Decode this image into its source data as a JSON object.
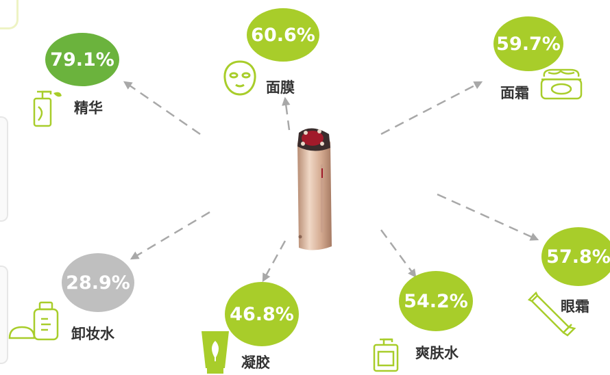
{
  "colors": {
    "darkGreen": "#6bb33d",
    "limeGreen": "#a8cd2a",
    "gray": "#bfbfbf",
    "iconGreen": "#a8cd2a",
    "arrow": "#a8a8a8",
    "text": "#333333"
  },
  "center_device": {
    "icon": "beauty-device"
  },
  "items": [
    {
      "id": "essence",
      "label": "精华",
      "value": "79.1%",
      "color": "dark-green",
      "icon": "pump-bottle-icon"
    },
    {
      "id": "mask",
      "label": "面膜",
      "value": "60.6%",
      "color": "lime-green",
      "icon": "face-mask-icon"
    },
    {
      "id": "cream",
      "label": "面霜",
      "value": "59.7%",
      "color": "lime-green",
      "icon": "cream-jar-icon"
    },
    {
      "id": "eyecream",
      "label": "眼霜",
      "value": "57.8%",
      "color": "lime-green",
      "icon": "tube-icon"
    },
    {
      "id": "toner",
      "label": "爽肤水",
      "value": "54.2%",
      "color": "lime-green",
      "icon": "pump-bottle-icon"
    },
    {
      "id": "gel",
      "label": "凝胶",
      "value": "46.8%",
      "color": "lime-green",
      "icon": "leaf-tube-icon"
    },
    {
      "id": "remover",
      "label": "卸妆水",
      "value": "28.9%",
      "color": "gray",
      "icon": "bottle-and-pad-icon"
    }
  ]
}
